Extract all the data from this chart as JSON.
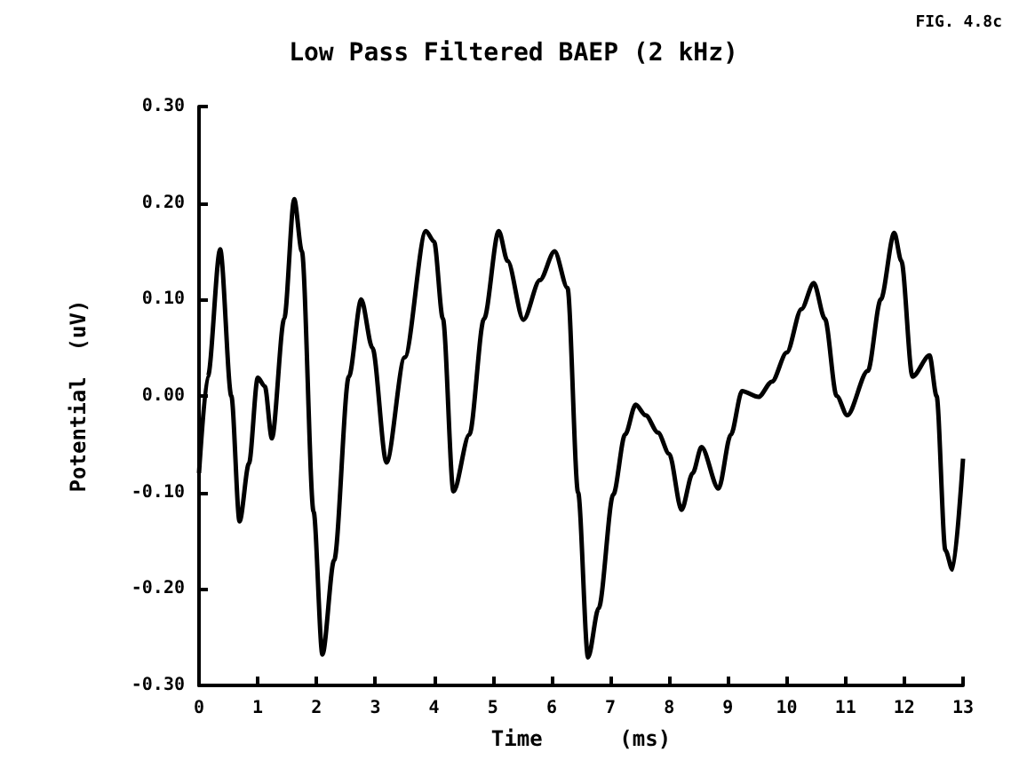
{
  "chart_data": {
    "type": "line",
    "title": "Low Pass Filtered BAEP (2 kHz)",
    "xlabel": "Time      (ms)",
    "ylabel": "Potential  (uV)",
    "annotations": [
      "FIG. 4.8c"
    ],
    "x": [
      0,
      0.15,
      0.36,
      0.55,
      0.69,
      0.85,
      1.0,
      1.12,
      1.24,
      1.45,
      1.62,
      1.75,
      1.95,
      2.1,
      2.3,
      2.55,
      2.76,
      2.95,
      3.19,
      3.5,
      3.86,
      4.0,
      4.15,
      4.33,
      4.6,
      4.85,
      5.1,
      5.25,
      5.52,
      5.8,
      6.05,
      6.27,
      6.45,
      6.62,
      6.8,
      7.05,
      7.25,
      7.43,
      7.6,
      7.81,
      8.0,
      8.21,
      8.4,
      8.55,
      8.84,
      9.05,
      9.24,
      9.52,
      9.75,
      10.0,
      10.25,
      10.46,
      10.65,
      10.85,
      11.03,
      11.38,
      11.6,
      11.83,
      11.95,
      12.14,
      12.43,
      12.55,
      12.7,
      12.82,
      13.0
    ],
    "series": [
      {
        "color": "#000000",
        "values": [
          -0.08,
          0.02,
          0.152,
          0.0,
          -0.13,
          -0.07,
          0.019,
          0.01,
          -0.044,
          0.08,
          0.204,
          0.15,
          -0.12,
          -0.268,
          -0.17,
          0.02,
          0.1,
          0.05,
          -0.069,
          0.04,
          0.171,
          0.16,
          0.08,
          -0.099,
          -0.04,
          0.08,
          0.171,
          0.14,
          0.079,
          0.12,
          0.15,
          0.112,
          -0.1,
          -0.271,
          -0.22,
          -0.102,
          -0.04,
          -0.009,
          -0.02,
          -0.038,
          -0.06,
          -0.118,
          -0.08,
          -0.053,
          -0.096,
          -0.04,
          0.005,
          -0.001,
          0.015,
          0.045,
          0.09,
          0.117,
          0.08,
          0.0,
          -0.02,
          0.026,
          0.1,
          0.169,
          0.14,
          0.02,
          0.042,
          0.0,
          -0.16,
          -0.18,
          -0.065
        ]
      }
    ],
    "xlim": [
      0,
      13
    ],
    "xticks": [
      0,
      1,
      2,
      3,
      4,
      5,
      6,
      7,
      8,
      9,
      10,
      11,
      12,
      13
    ],
    "ylim": [
      -0.3,
      0.3
    ],
    "yticks": [
      {
        "value": -0.3,
        "label": "-0.30"
      },
      {
        "value": -0.2,
        "label": "-0.20"
      },
      {
        "value": -0.1,
        "label": "-0.10"
      },
      {
        "value": 0,
        "label": "0.00"
      },
      {
        "value": 0.1,
        "label": "0.10"
      },
      {
        "value": 0.2,
        "label": "0.20"
      },
      {
        "value": 0.3,
        "label": "0.30"
      }
    ],
    "grid": false,
    "marker": "none",
    "line_style": "solid"
  }
}
